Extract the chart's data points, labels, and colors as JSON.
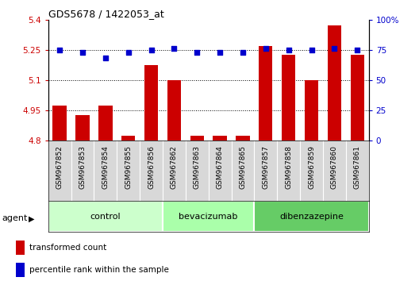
{
  "title": "GDS5678 / 1422053_at",
  "samples": [
    "GSM967852",
    "GSM967853",
    "GSM967854",
    "GSM967855",
    "GSM967856",
    "GSM967862",
    "GSM967863",
    "GSM967864",
    "GSM967865",
    "GSM967857",
    "GSM967858",
    "GSM967859",
    "GSM967860",
    "GSM967861"
  ],
  "bar_values": [
    4.975,
    4.925,
    4.975,
    4.825,
    5.175,
    5.1,
    4.825,
    4.825,
    4.825,
    5.27,
    5.225,
    5.1,
    5.37,
    5.225
  ],
  "dot_values": [
    75,
    73,
    68,
    73,
    75,
    76,
    73,
    73,
    73,
    76,
    75,
    75,
    76,
    75
  ],
  "groups": [
    {
      "label": "control",
      "start": 0,
      "end": 5,
      "color": "#ccffcc"
    },
    {
      "label": "bevacizumab",
      "start": 5,
      "end": 9,
      "color": "#aaffaa"
    },
    {
      "label": "dibenzazepine",
      "start": 9,
      "end": 14,
      "color": "#66cc66"
    }
  ],
  "bar_color": "#cc0000",
  "dot_color": "#0000cc",
  "bar_bottom": 4.8,
  "ylim_left": [
    4.8,
    5.4
  ],
  "ylim_right": [
    0,
    100
  ],
  "yticks_left": [
    4.8,
    4.95,
    5.1,
    5.25,
    5.4
  ],
  "yticks_right": [
    0,
    25,
    50,
    75,
    100
  ],
  "ytick_labels_left": [
    "4.8",
    "4.95",
    "5.1",
    "5.25",
    "5.4"
  ],
  "ytick_labels_right": [
    "0",
    "25",
    "50",
    "75",
    "100%"
  ],
  "hlines": [
    4.95,
    5.1,
    5.25
  ],
  "legend_bar_label": "transformed count",
  "legend_dot_label": "percentile rank within the sample",
  "agent_label": "agent",
  "bar_width": 0.6,
  "sample_area_color": "#d8d8d8",
  "group_area_color": "#88cc88"
}
